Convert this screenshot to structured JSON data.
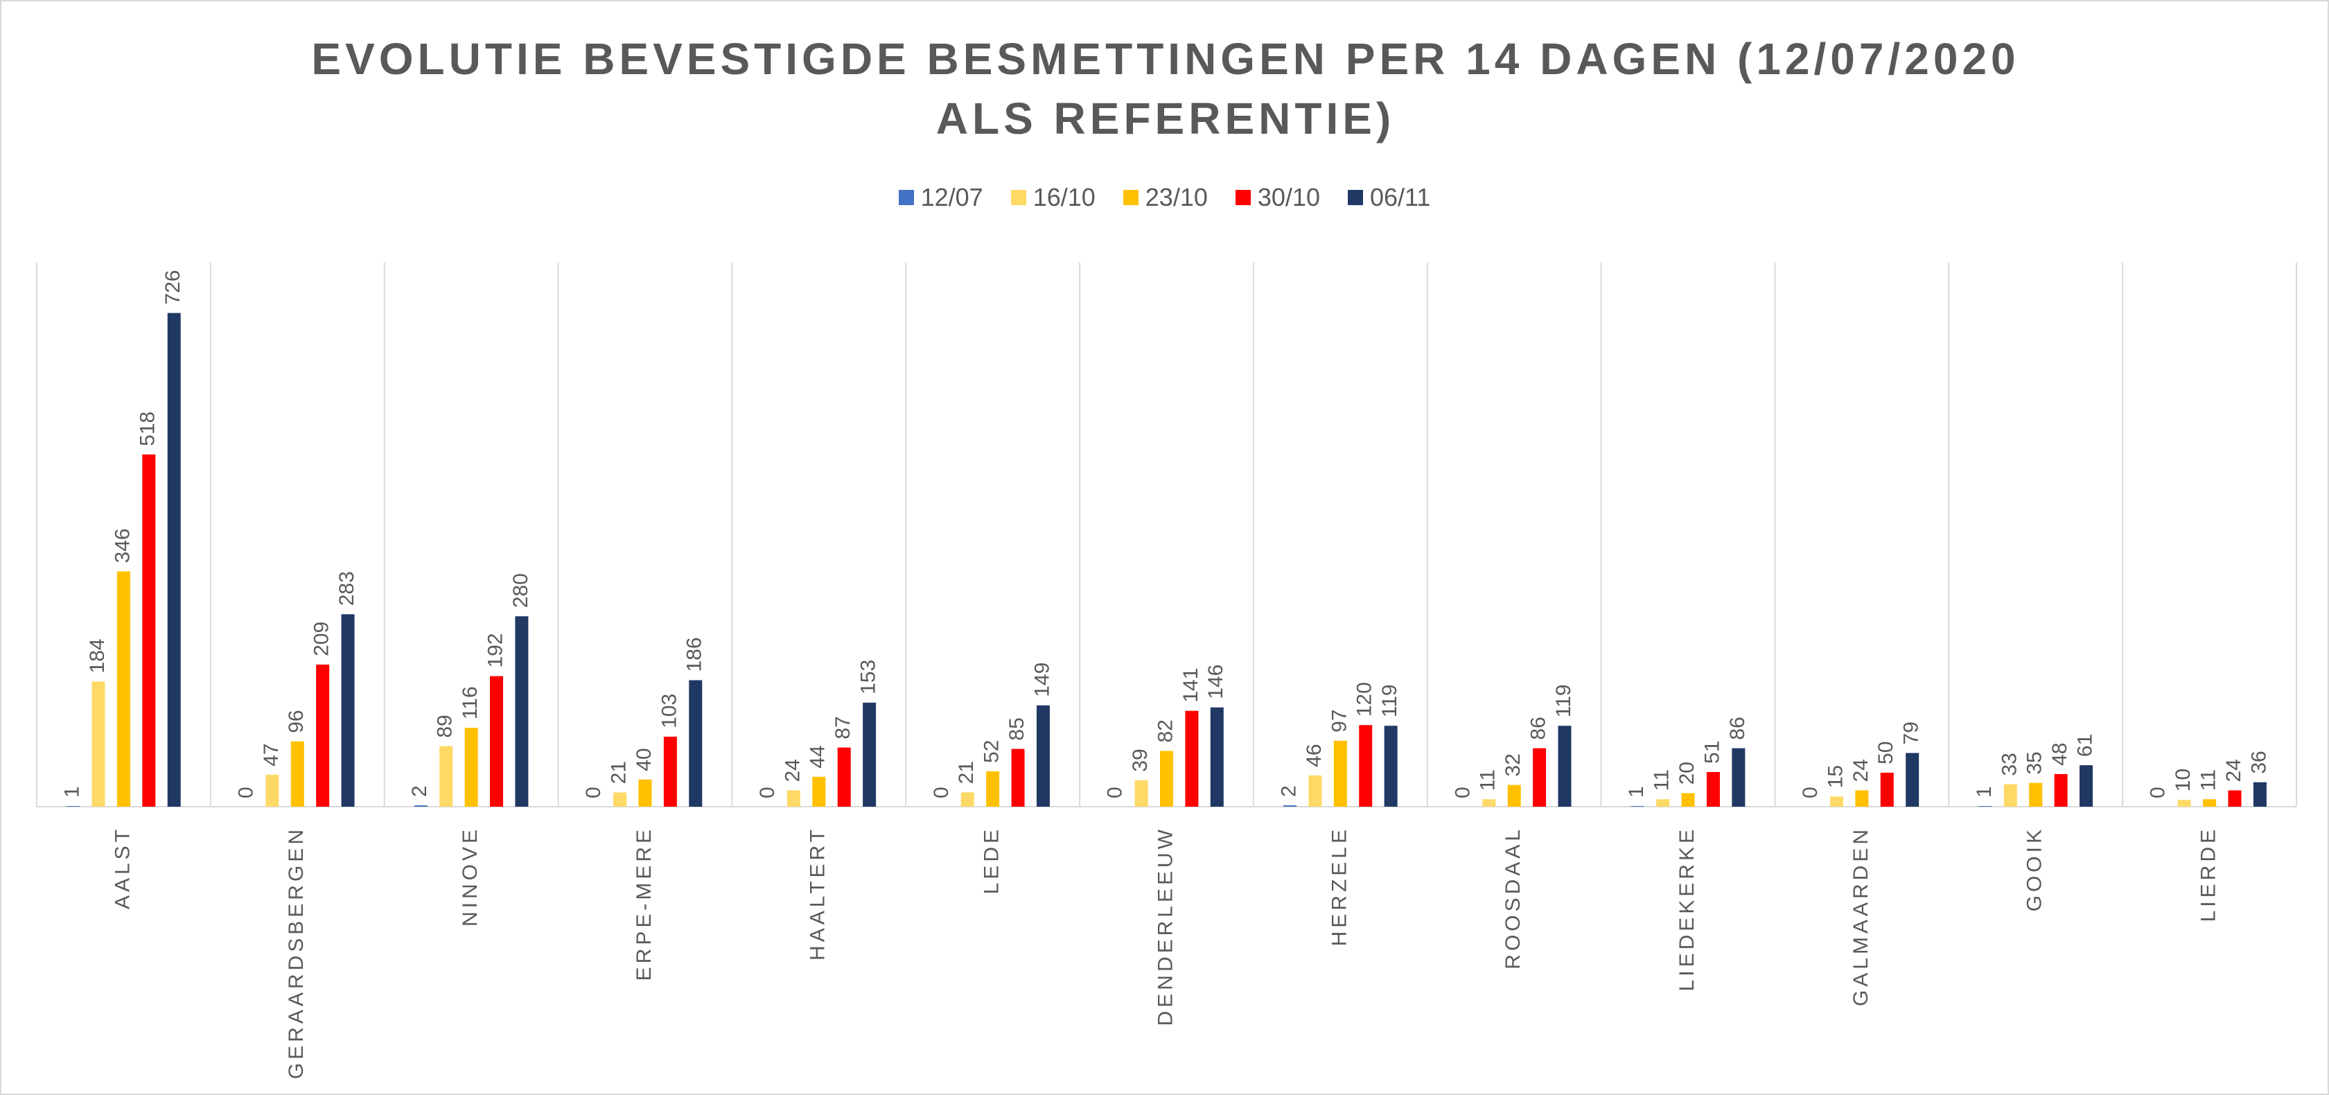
{
  "chart_data": {
    "type": "bar",
    "title": "EVOLUTIE BEVESTIGDE BESMETTINGEN PER 14 DAGEN (12/07/2020 ALS REFERENTIE)",
    "categories": [
      "AALST",
      "GERAARDSBERGEN",
      "NINOVE",
      "ERPE-MERE",
      "HAALTERT",
      "LEDE",
      "DENDERLEEUW",
      "HERZELE",
      "ROOSDAAL",
      "LIEDEKERKE",
      "GALMAARDEN",
      "GOOIK",
      "LIERDE"
    ],
    "series": [
      {
        "name": "12/07",
        "color": "#4472c4",
        "values": [
          1,
          0,
          2,
          0,
          0,
          0,
          0,
          2,
          0,
          1,
          0,
          1,
          0
        ]
      },
      {
        "name": "16/10",
        "color": "#ffd966",
        "values": [
          184,
          47,
          89,
          21,
          24,
          21,
          39,
          46,
          11,
          11,
          15,
          33,
          10
        ]
      },
      {
        "name": "23/10",
        "color": "#ffc000",
        "values": [
          346,
          96,
          116,
          40,
          44,
          52,
          82,
          97,
          32,
          20,
          24,
          35,
          11
        ]
      },
      {
        "name": "30/10",
        "color": "#ff0000",
        "values": [
          518,
          209,
          192,
          103,
          87,
          85,
          141,
          120,
          86,
          51,
          50,
          48,
          24
        ]
      },
      {
        "name": "06/11",
        "color": "#203864",
        "values": [
          726,
          283,
          280,
          186,
          153,
          149,
          146,
          119,
          119,
          86,
          79,
          61,
          36
        ]
      }
    ],
    "ylim": [
      0,
      800
    ]
  }
}
